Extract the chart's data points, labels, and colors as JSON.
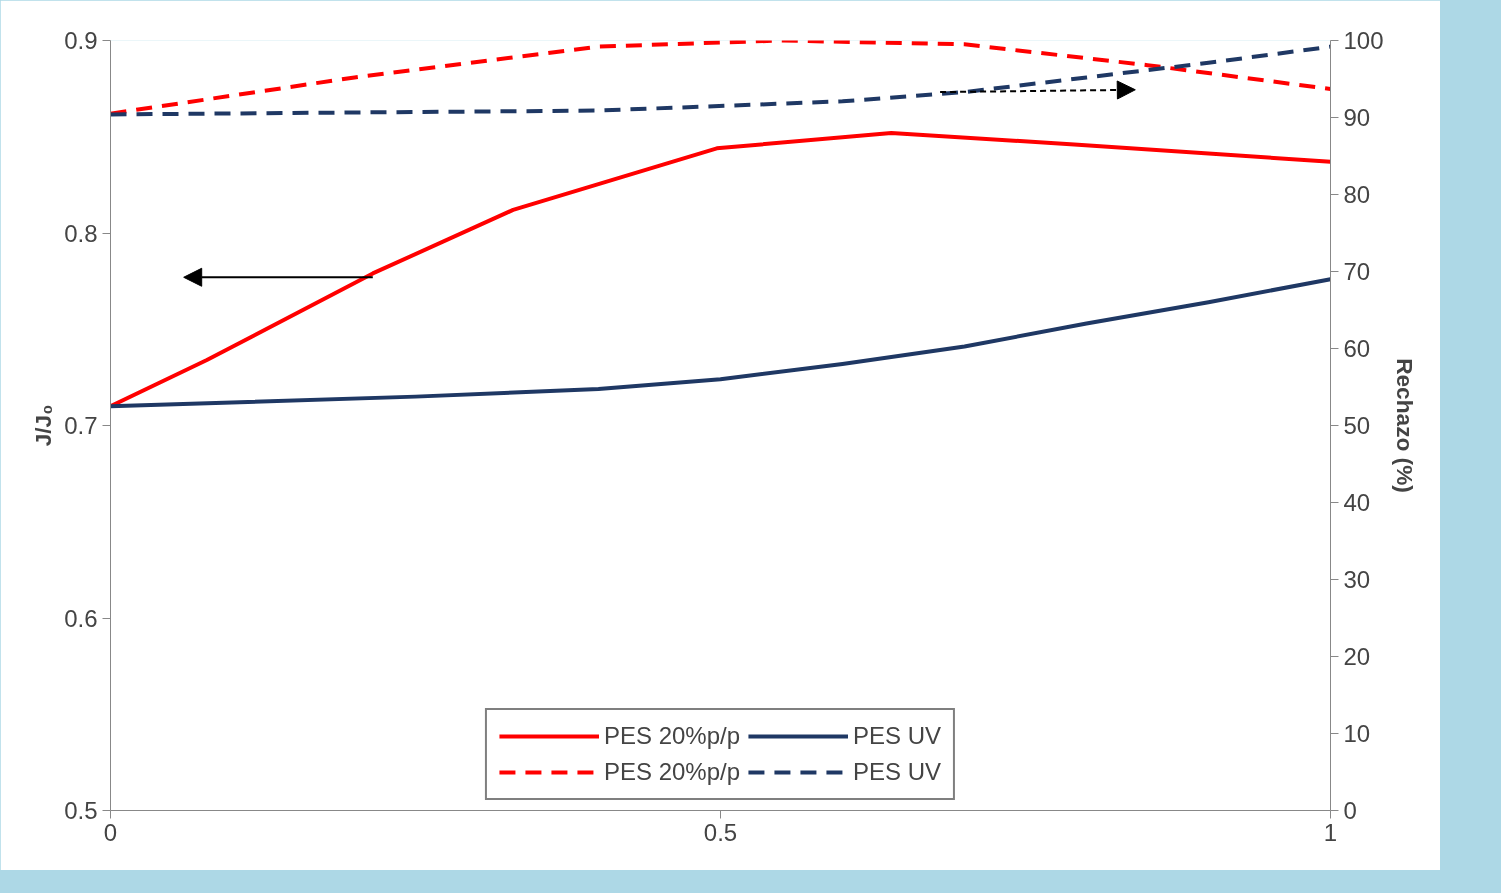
{
  "chart_data": {
    "type": "line",
    "ylabel": "J/J₀",
    "y2label": "Rechazo (%)",
    "xlim": [
      0,
      1
    ],
    "xticks": [
      0,
      0.5,
      1
    ],
    "ylim": [
      0.5,
      0.9
    ],
    "yticks": [
      0.5,
      0.6,
      0.7,
      0.8,
      0.9
    ],
    "y2lim": [
      0,
      100
    ],
    "y2ticks": [
      0,
      10,
      20,
      30,
      40,
      50,
      60,
      70,
      80,
      90,
      100
    ],
    "grid": false,
    "legend": "bottom",
    "marker": "none",
    "series": [
      {
        "name": "PES 20%p/p",
        "color": "#ff0000",
        "line_style": "solid",
        "x": [
          0,
          0.079,
          0.215,
          0.33,
          0.497,
          0.64,
          0.79,
          1
        ],
        "values": [
          0.71,
          0.734,
          0.779,
          0.812,
          0.844,
          0.852,
          0.846,
          0.837
        ]
      },
      {
        "name": "PES UV",
        "color": "#1f3864",
        "line_style": "solid",
        "x": [
          0,
          0.25,
          0.4,
          0.5,
          0.6,
          0.7,
          0.8,
          0.9,
          1
        ],
        "values": [
          0.71,
          0.715,
          0.719,
          0.724,
          0.732,
          0.741,
          0.753,
          0.764,
          0.776
        ]
      },
      {
        "name": "PES 20%p/p",
        "color": "#ff0000",
        "line_style": "dashed",
        "axis": "y2",
        "x": [
          0,
          0.2,
          0.4,
          0.55,
          0.7,
          0.85,
          1
        ],
        "values": [
          90.5,
          95.2,
          99.2,
          100,
          99.5,
          96.8,
          93.7
        ]
      },
      {
        "name": "PES UV",
        "color": "#1f3864",
        "line_style": "dashed",
        "axis": "y2",
        "x": [
          0,
          0.4,
          0.6,
          0.7,
          0.8,
          0.9,
          1
        ],
        "values": [
          90.4,
          90.9,
          92.1,
          93.3,
          95.2,
          97.1,
          99.2
        ]
      }
    ]
  }
}
